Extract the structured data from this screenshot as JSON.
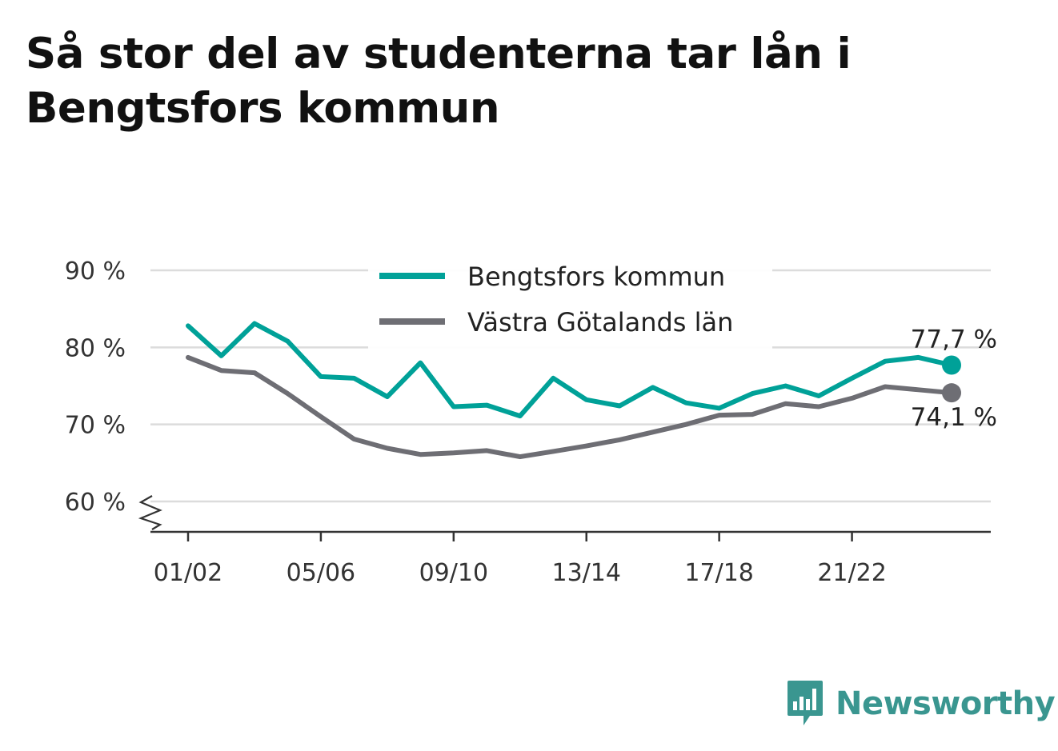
{
  "title": "Så stor del av studenterna tar lån i Bengtsfors kommun",
  "brand": {
    "name": "Newsworthy",
    "logo_icon": "bar-chart-speech-bubble-icon"
  },
  "chart_data": {
    "type": "line",
    "x": [
      "01/02",
      "02/03",
      "03/04",
      "04/05",
      "05/06",
      "06/07",
      "07/08",
      "08/09",
      "09/10",
      "10/11",
      "11/12",
      "12/13",
      "13/14",
      "14/15",
      "15/16",
      "16/17",
      "17/18",
      "18/19",
      "19/20",
      "20/21",
      "21/22",
      "22/23",
      "23/24",
      "24/25"
    ],
    "x_tick_labels": [
      "01/02",
      "05/06",
      "09/10",
      "13/14",
      "17/18",
      "21/22"
    ],
    "y_ticks": [
      60,
      70,
      80,
      90
    ],
    "y_tick_labels": [
      "60 %",
      "70 %",
      "80 %",
      "90 %"
    ],
    "ylim": [
      56,
      91
    ],
    "axis_break": true,
    "grid": true,
    "legend_position": "top",
    "series": [
      {
        "name": "Bengtsfors kommun",
        "color": "#00a198",
        "values": [
          82.8,
          78.9,
          83.1,
          80.8,
          76.2,
          76.0,
          73.6,
          78.0,
          72.3,
          72.5,
          71.1,
          76.0,
          73.2,
          72.4,
          74.8,
          72.8,
          72.1,
          74.0,
          75.0,
          73.7,
          76.0,
          78.2,
          78.7,
          77.7
        ],
        "end_label": "77,7 %"
      },
      {
        "name": "Västra Götalands län",
        "color": "#6e6e74",
        "values": [
          78.7,
          77.0,
          76.7,
          74.0,
          71.0,
          68.1,
          66.9,
          66.1,
          66.3,
          66.6,
          65.8,
          66.5,
          67.2,
          68.0,
          69.0,
          70.0,
          71.2,
          71.3,
          72.7,
          72.3,
          73.4,
          74.9,
          74.5,
          74.1
        ],
        "end_label": "74,1 %"
      }
    ]
  }
}
